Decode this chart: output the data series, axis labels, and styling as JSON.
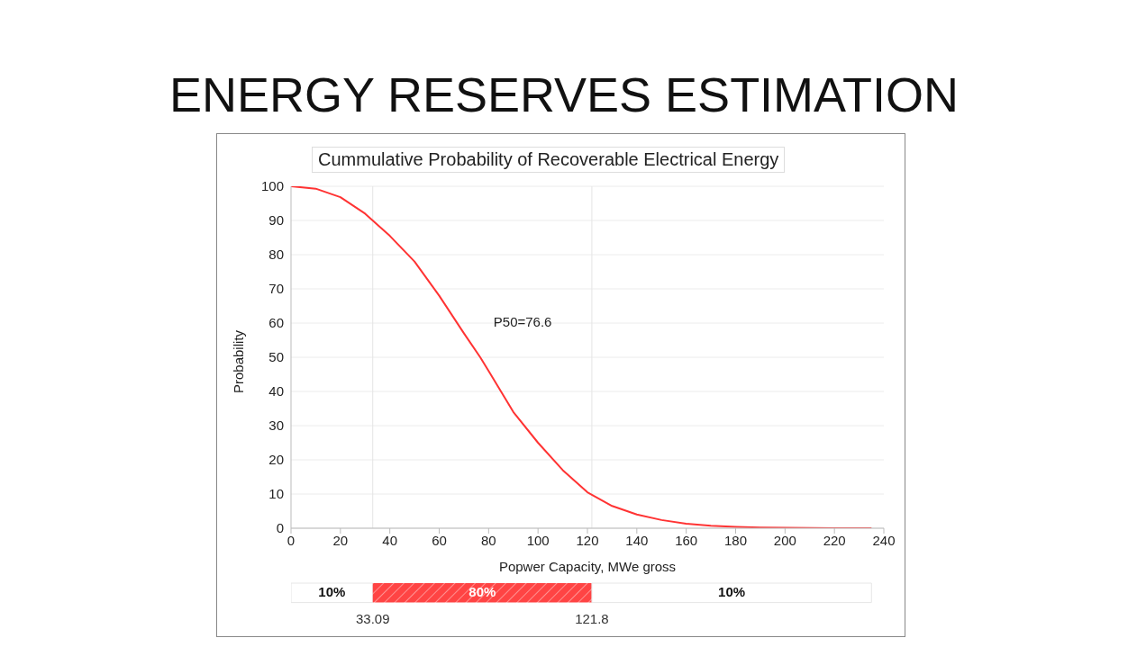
{
  "chart_data": [
    {
      "type": "line",
      "title": "ENERGY RESERVES ESTIMATION",
      "subtitle": "Cummulative Probability of Recoverable Electrical Energy",
      "xlabel": "Popwer Capacity, MWe gross",
      "ylabel": "Probability",
      "x": [
        0,
        10,
        20,
        30,
        40,
        50,
        60,
        70,
        76.6,
        80,
        90,
        100,
        110,
        120,
        130,
        140,
        150,
        160,
        170,
        180,
        190,
        200,
        220,
        235
      ],
      "series": [
        {
          "color": "#ff3333",
          "values": [
            100,
            99.3,
            96.8,
            92,
            85.5,
            78,
            68,
            57,
            50,
            46,
            34,
            25,
            17,
            10.5,
            6.5,
            4,
            2.4,
            1.3,
            0.7,
            0.4,
            0.2,
            0.1,
            0,
            0
          ]
        }
      ],
      "xlim": [
        0,
        240
      ],
      "xticks": [
        0,
        20,
        40,
        60,
        80,
        100,
        120,
        140,
        160,
        180,
        200,
        220,
        240
      ],
      "ylim": [
        0,
        100
      ],
      "yticks": [
        0,
        10,
        20,
        30,
        40,
        50,
        60,
        70,
        80,
        90,
        100
      ],
      "grid": "y",
      "legend": false,
      "marker": "none",
      "line_style": "solid",
      "annotations": [
        "P50=76.6"
      ],
      "ref_lines": [
        {
          "axis": "x",
          "value": 33.09,
          "color": "#e4e4e4"
        },
        {
          "axis": "x",
          "value": 121.8,
          "color": "#e4e4e4"
        }
      ]
    },
    {
      "type": "bar",
      "orientation": "horizontal",
      "stacked": true,
      "categories": [
        null
      ],
      "xlim": [
        0,
        240
      ],
      "tick_labels": false,
      "series": [
        {
          "color": "#ffffff",
          "values": [
            33.1
          ]
        },
        {
          "color": "#ff4444",
          "values": [
            88.7
          ]
        },
        {
          "color": "#ffffff",
          "values": [
            113.2
          ]
        }
      ],
      "annotations": [
        "10%",
        "80%",
        "10%",
        "33.09",
        "121.8"
      ]
    }
  ]
}
